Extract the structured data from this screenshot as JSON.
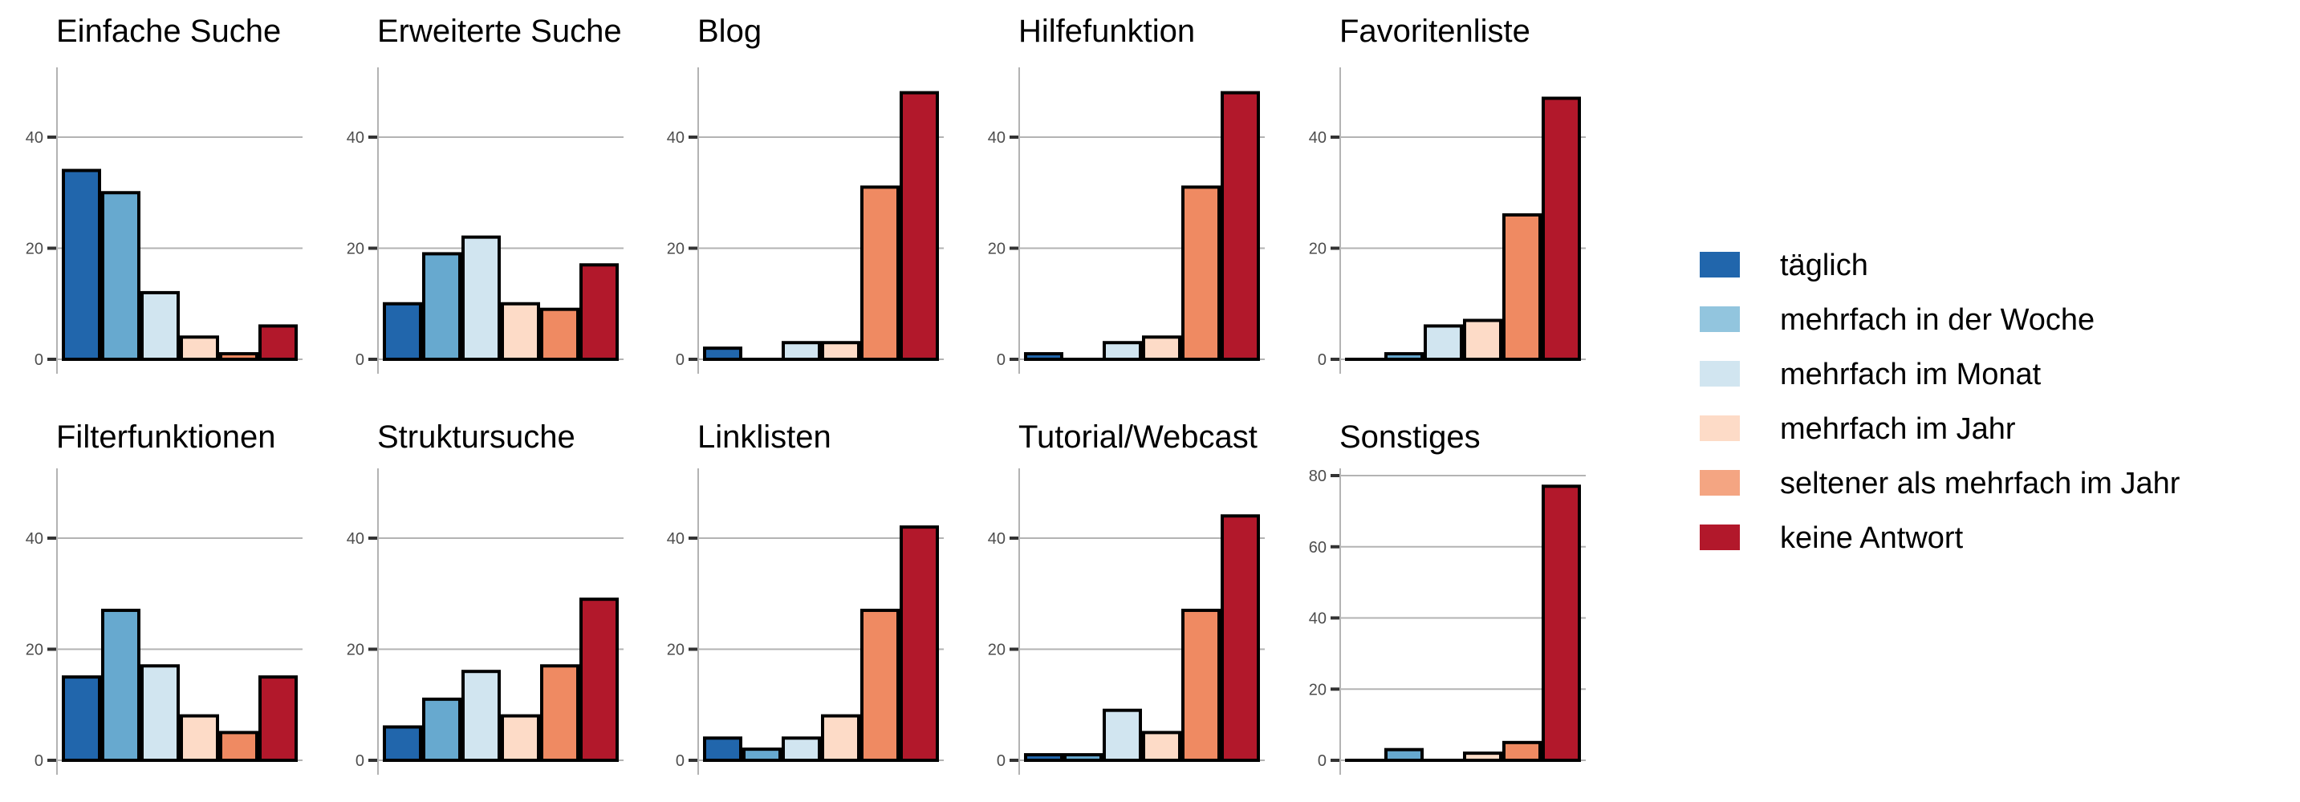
{
  "chart_data": {
    "type": "bar",
    "layout": "facet-grid 2x5, legend right",
    "categories": [
      "täglich",
      "mehrfach in der Woche",
      "mehrfach im Monat",
      "mehrfach im Jahr",
      "seltener als mehrfach im Jahr",
      "keine Antwort"
    ],
    "colors": [
      "#2166ac",
      "#67a9cf",
      "#d1e5f0",
      "#fddbc7",
      "#ef8a62",
      "#b2182b"
    ],
    "legend_colors": [
      "#2166ac",
      "#92c5de",
      "#d1e5f0",
      "#fddbc7",
      "#f4a582",
      "#b2182b"
    ],
    "legend_position": "right",
    "grid": true,
    "xlabel": "",
    "ylabel": "",
    "panels": [
      {
        "title": "Einfache Suche",
        "values": [
          34,
          30,
          12,
          4,
          1,
          6
        ],
        "ylim": [
          0,
          52
        ],
        "yticks": [
          0,
          20,
          40
        ]
      },
      {
        "title": "Erweiterte Suche",
        "values": [
          10,
          19,
          22,
          10,
          9,
          17
        ],
        "ylim": [
          0,
          52
        ],
        "yticks": [
          0,
          20,
          40
        ]
      },
      {
        "title": "Blog",
        "values": [
          2,
          0,
          3,
          3,
          31,
          48
        ],
        "ylim": [
          0,
          52
        ],
        "yticks": [
          0,
          20,
          40
        ]
      },
      {
        "title": "Hilfefunktion",
        "values": [
          1,
          0,
          3,
          4,
          31,
          48
        ],
        "ylim": [
          0,
          52
        ],
        "yticks": [
          0,
          20,
          40
        ]
      },
      {
        "title": "Favoritenliste",
        "values": [
          0,
          1,
          6,
          7,
          26,
          47
        ],
        "ylim": [
          0,
          52
        ],
        "yticks": [
          0,
          20,
          40
        ]
      },
      {
        "title": "Filterfunktionen",
        "values": [
          15,
          27,
          17,
          8,
          5,
          15
        ],
        "ylim": [
          0,
          52
        ],
        "yticks": [
          0,
          20,
          40
        ]
      },
      {
        "title": "Struktursuche",
        "values": [
          6,
          11,
          16,
          8,
          17,
          29
        ],
        "ylim": [
          0,
          52
        ],
        "yticks": [
          0,
          20,
          40
        ]
      },
      {
        "title": "Linklisten",
        "values": [
          4,
          2,
          4,
          8,
          27,
          42
        ],
        "ylim": [
          0,
          52
        ],
        "yticks": [
          0,
          20,
          40
        ]
      },
      {
        "title": "Tutorial/Webcast",
        "values": [
          1,
          1,
          9,
          5,
          27,
          44
        ],
        "ylim": [
          0,
          52
        ],
        "yticks": [
          0,
          20,
          40
        ]
      },
      {
        "title": "Sonstiges",
        "values": [
          0,
          3,
          0,
          2,
          5,
          77
        ],
        "ylim": [
          0,
          83
        ],
        "yticks": [
          0,
          20,
          40,
          60,
          80
        ]
      }
    ]
  }
}
